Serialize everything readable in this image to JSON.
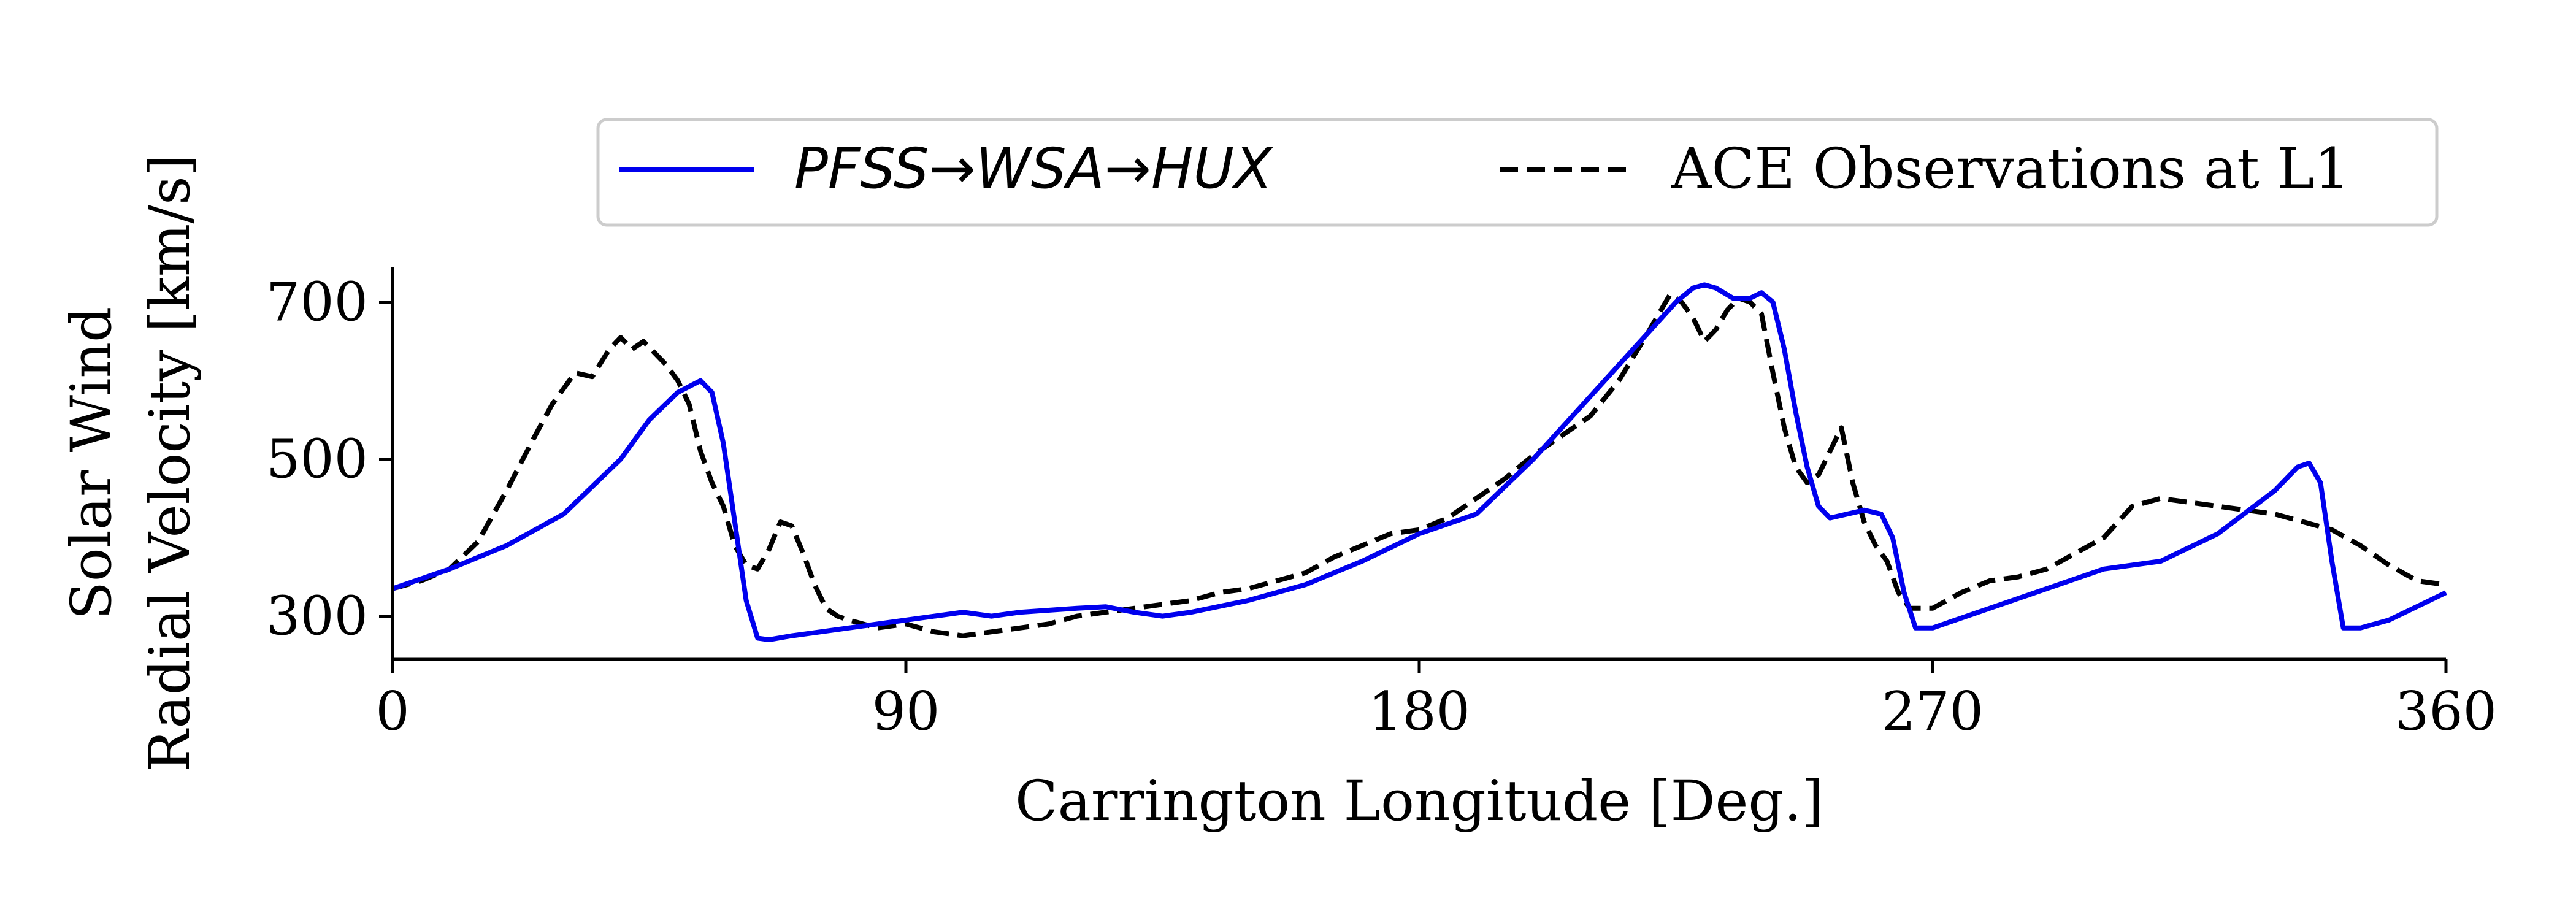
{
  "chart_data": {
    "type": "line",
    "title": "",
    "xlabel": "Carrington Longitude [Deg.]",
    "ylabel_lines": [
      "Solar Wind",
      "Radial Velocity [km/s]"
    ],
    "xlim": [
      0,
      360
    ],
    "ylim": [
      245,
      745
    ],
    "xticks": [
      0,
      90,
      180,
      270,
      360
    ],
    "yticks": [
      300,
      500,
      700
    ],
    "grid": false,
    "legend_position": "top",
    "series": [
      {
        "name": "PFSS→WSA→HUX",
        "color": "#0000ee",
        "style": "solid",
        "x": [
          0,
          10,
          20,
          30,
          40,
          45,
          50,
          54,
          56,
          58,
          60,
          62,
          64,
          66,
          70,
          80,
          90,
          100,
          105,
          110,
          120,
          125,
          130,
          135,
          140,
          150,
          160,
          170,
          180,
          190,
          200,
          210,
          220,
          225,
          228,
          230,
          232,
          235,
          238,
          240,
          242,
          244,
          246,
          248,
          250,
          252,
          255,
          258,
          261,
          263,
          265,
          267,
          270,
          280,
          290,
          300,
          305,
          310,
          320,
          330,
          334,
          336,
          338,
          340,
          342,
          345,
          350,
          360
        ],
        "y": [
          335,
          360,
          390,
          430,
          500,
          550,
          585,
          600,
          585,
          520,
          420,
          320,
          272,
          270,
          275,
          285,
          295,
          305,
          300,
          305,
          310,
          312,
          305,
          300,
          305,
          320,
          340,
          370,
          405,
          430,
          500,
          580,
          660,
          700,
          718,
          722,
          718,
          705,
          705,
          712,
          700,
          640,
          560,
          490,
          440,
          425,
          430,
          435,
          430,
          400,
          330,
          285,
          285,
          310,
          335,
          360,
          365,
          370,
          405,
          460,
          490,
          495,
          470,
          370,
          285,
          285,
          295,
          330
        ]
      },
      {
        "name": "ACE Observations at L1",
        "color": "#000000",
        "style": "dashed",
        "x": [
          0,
          5,
          10,
          15,
          20,
          25,
          28,
          32,
          35,
          38,
          40,
          42,
          44,
          46,
          48,
          50,
          52,
          54,
          56,
          58,
          60,
          62,
          64,
          66,
          68,
          70,
          72,
          74,
          76,
          78,
          80,
          85,
          90,
          95,
          100,
          105,
          110,
          115,
          120,
          125,
          130,
          135,
          140,
          145,
          150,
          155,
          160,
          165,
          170,
          175,
          180,
          185,
          190,
          195,
          200,
          205,
          210,
          215,
          220,
          224,
          226,
          228,
          230,
          232,
          234,
          236,
          238,
          240,
          242,
          244,
          246,
          248,
          250,
          252,
          254,
          256,
          258,
          260,
          262,
          264,
          266,
          268,
          270,
          275,
          280,
          285,
          290,
          295,
          300,
          305,
          310,
          315,
          320,
          325,
          330,
          335,
          340,
          345,
          350,
          355,
          360
        ],
        "y": [
          335,
          345,
          360,
          395,
          460,
          530,
          570,
          610,
          605,
          640,
          655,
          640,
          650,
          635,
          620,
          600,
          570,
          510,
          470,
          440,
          390,
          365,
          360,
          385,
          420,
          415,
          380,
          340,
          310,
          300,
          295,
          285,
          290,
          280,
          275,
          280,
          285,
          290,
          300,
          305,
          310,
          315,
          320,
          330,
          335,
          345,
          355,
          375,
          390,
          405,
          410,
          425,
          450,
          475,
          505,
          530,
          555,
          600,
          660,
          710,
          700,
          680,
          650,
          665,
          690,
          705,
          700,
          685,
          610,
          540,
          490,
          470,
          480,
          510,
          540,
          470,
          420,
          390,
          370,
          330,
          310,
          310,
          310,
          330,
          345,
          350,
          360,
          380,
          400,
          440,
          450,
          445,
          440,
          435,
          430,
          420,
          410,
          390,
          365,
          345,
          340
        ]
      }
    ]
  }
}
